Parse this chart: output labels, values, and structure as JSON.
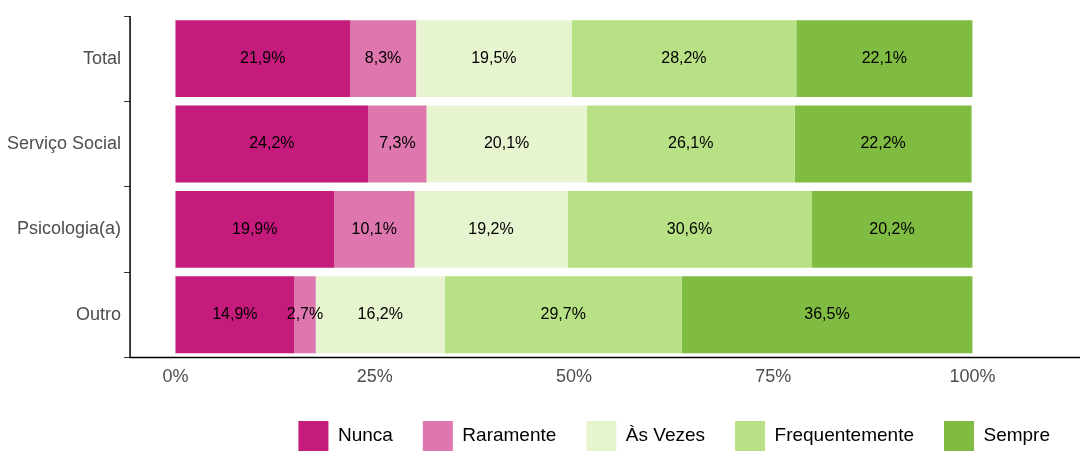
{
  "chart_data": {
    "type": "bar",
    "orientation": "horizontal",
    "stacked": true,
    "categories": [
      "Total",
      "Serviço Social",
      "Psicologia(a)",
      "Outro"
    ],
    "xlim": [
      -5.7,
      113.5
    ],
    "xticks": [
      {
        "value": 0,
        "label": "0%"
      },
      {
        "value": 25,
        "label": "25%"
      },
      {
        "value": 50,
        "label": "50%"
      },
      {
        "value": 75,
        "label": "75%"
      },
      {
        "value": 100,
        "label": "100%"
      }
    ],
    "grid": false,
    "legend": "bottom",
    "series": [
      {
        "name": "Nunca",
        "color": "#c51b7d",
        "values": [
          21.9,
          24.2,
          19.9,
          14.9
        ],
        "value_labels": [
          "21,9%",
          "24,2%",
          "19,9%",
          "14,9%"
        ]
      },
      {
        "name": "Raramente",
        "color": "#de77ae",
        "values": [
          8.3,
          7.3,
          10.1,
          2.7
        ],
        "value_labels": [
          "8,3%",
          "7,3%",
          "10,1%",
          "2,7%"
        ]
      },
      {
        "name": "Às Vezes",
        "color": "#e6f5d0",
        "values": [
          19.5,
          20.1,
          19.2,
          16.2
        ],
        "value_labels": [
          "19,5%",
          "20,1%",
          "19,2%",
          "16,2%"
        ]
      },
      {
        "name": "Frequentemente",
        "color": "#b8e186",
        "values": [
          28.2,
          26.1,
          30.6,
          29.7
        ],
        "value_labels": [
          "28,2%",
          "26,1%",
          "30,6%",
          "29,7%"
        ]
      },
      {
        "name": "Sempre",
        "color": "#7fbc41",
        "values": [
          22.1,
          22.2,
          20.2,
          36.5
        ],
        "value_labels": [
          "22,1%",
          "22,2%",
          "20,2%",
          "36,5%"
        ]
      }
    ]
  }
}
